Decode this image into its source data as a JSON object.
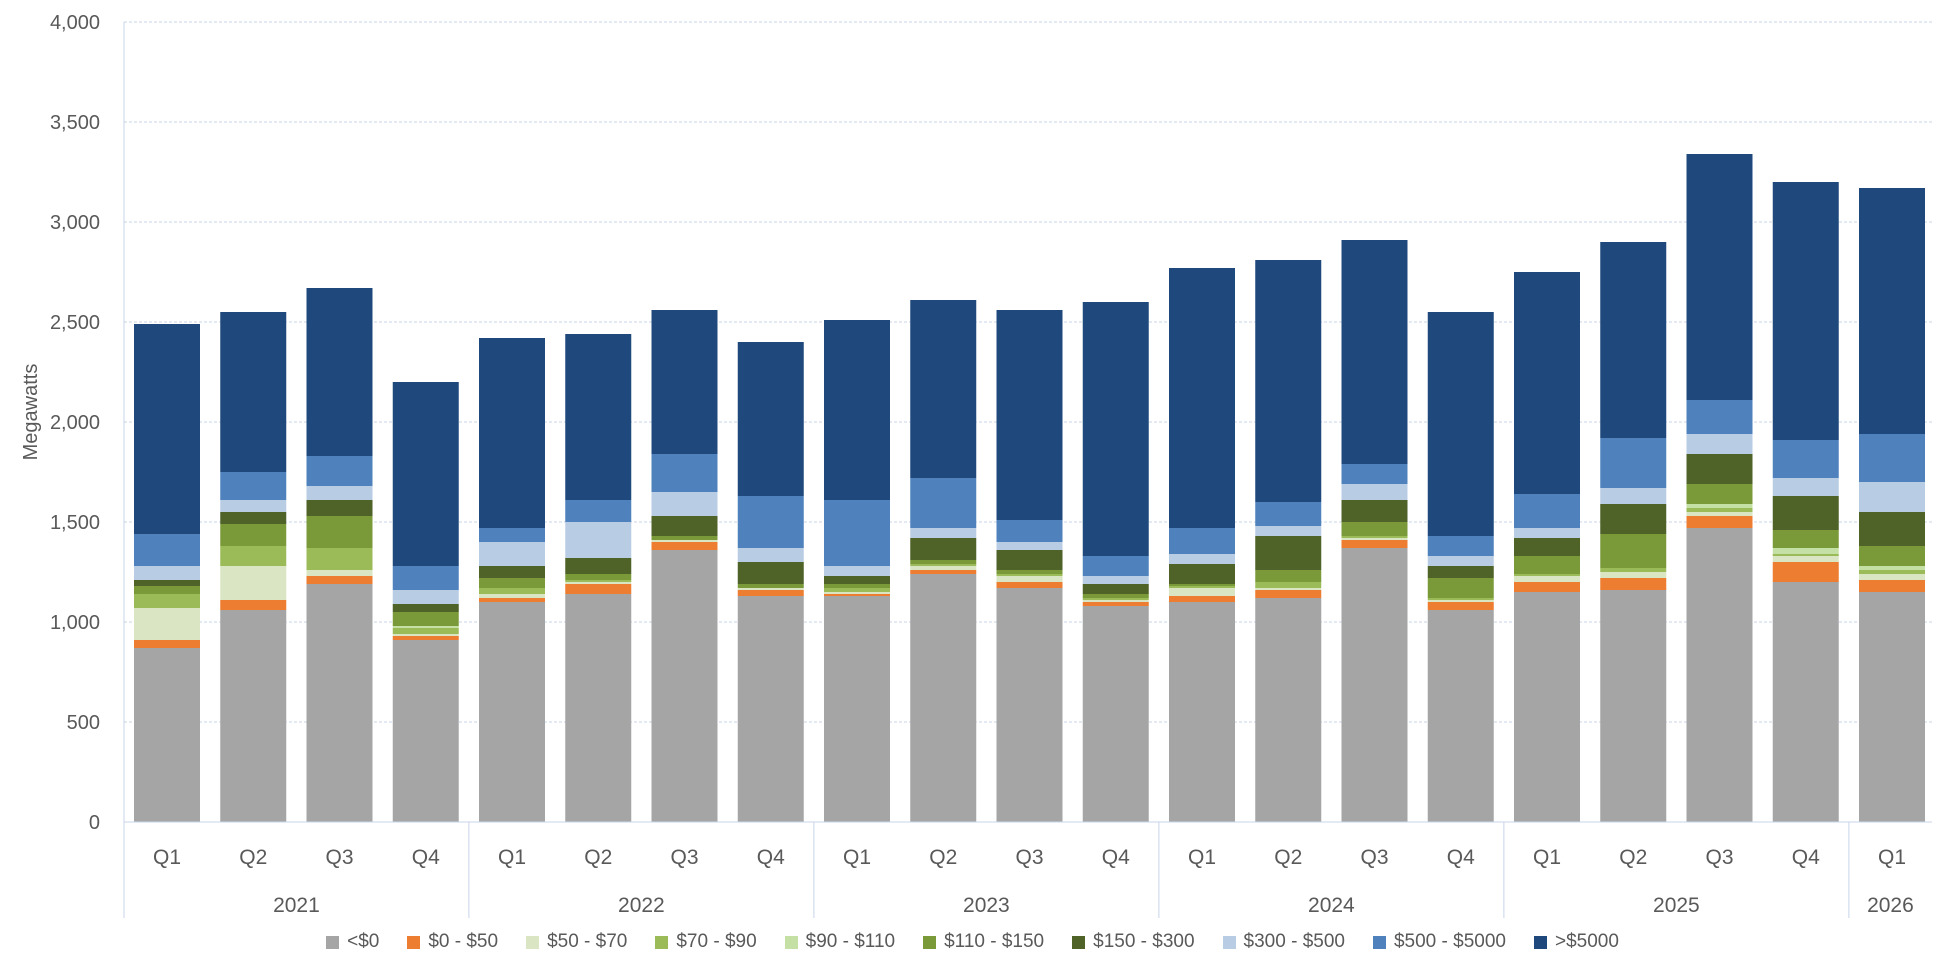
{
  "chart_data": {
    "type": "bar",
    "stacked": true,
    "ylabel": "Megawatts",
    "ylim": [
      0,
      4000
    ],
    "yticks": [
      0,
      500,
      1000,
      1500,
      2000,
      2500,
      3000,
      3500,
      4000
    ],
    "ytick_labels": [
      "0",
      "500",
      "1,000",
      "1,500",
      "2,000",
      "2,500",
      "3,000",
      "3,500",
      "4,000"
    ],
    "grid": true,
    "legend_position": "bottom",
    "categories": [
      "Q1",
      "Q2",
      "Q3",
      "Q4",
      "Q1",
      "Q2",
      "Q3",
      "Q4",
      "Q1",
      "Q2",
      "Q3",
      "Q4",
      "Q1",
      "Q2",
      "Q3",
      "Q4",
      "Q1",
      "Q2",
      "Q3",
      "Q4",
      "Q1"
    ],
    "groups": [
      {
        "label": "2021",
        "count": 4
      },
      {
        "label": "2022",
        "count": 4
      },
      {
        "label": "2023",
        "count": 4
      },
      {
        "label": "2024",
        "count": 4
      },
      {
        "label": "2025",
        "count": 4
      },
      {
        "label": "2026",
        "count": 1
      }
    ],
    "series": [
      {
        "name": "<$0",
        "color": "#a5a5a5",
        "values": [
          870,
          1060,
          1190,
          910,
          1100,
          1140,
          1360,
          1130,
          1130,
          1240,
          1170,
          1080,
          1100,
          1120,
          1370,
          1060,
          1150,
          1160,
          1470,
          1200,
          1150
        ]
      },
      {
        "name": "$0 - $50",
        "color": "#ed7d31",
        "values": [
          40,
          50,
          40,
          20,
          20,
          50,
          40,
          30,
          10,
          20,
          30,
          20,
          30,
          40,
          40,
          40,
          50,
          60,
          60,
          100,
          60
        ]
      },
      {
        "name": "$50 - $70",
        "color": "#d9e5c3",
        "values": [
          160,
          170,
          30,
          10,
          20,
          10,
          10,
          10,
          10,
          20,
          30,
          10,
          40,
          10,
          10,
          10,
          30,
          30,
          20,
          30,
          30
        ]
      },
      {
        "name": "$70 - $90",
        "color": "#9bbb59",
        "values": [
          70,
          100,
          110,
          30,
          30,
          10,
          0,
          0,
          20,
          10,
          10,
          10,
          10,
          30,
          10,
          10,
          10,
          20,
          20,
          10,
          20
        ]
      },
      {
        "name": "$90 - $110",
        "color": "#c5e0a5",
        "values": [
          0,
          0,
          0,
          10,
          0,
          0,
          0,
          0,
          0,
          0,
          0,
          0,
          0,
          0,
          0,
          0,
          0,
          0,
          20,
          30,
          20
        ]
      },
      {
        "name": "$110 - $150",
        "color": "#7a9a3a",
        "values": [
          40,
          110,
          160,
          70,
          50,
          30,
          20,
          20,
          20,
          20,
          20,
          20,
          10,
          60,
          70,
          100,
          90,
          170,
          100,
          90,
          100
        ]
      },
      {
        "name": "$150 - $300",
        "color": "#4f6228",
        "values": [
          30,
          60,
          80,
          40,
          60,
          80,
          100,
          110,
          40,
          110,
          100,
          50,
          100,
          170,
          110,
          60,
          90,
          150,
          150,
          170,
          170
        ]
      },
      {
        "name": "$300 - $500",
        "color": "#b8cce4",
        "values": [
          70,
          60,
          70,
          70,
          120,
          180,
          120,
          70,
          50,
          50,
          40,
          40,
          50,
          50,
          80,
          50,
          50,
          80,
          100,
          90,
          150
        ]
      },
      {
        "name": "$500 - $5000",
        "color": "#4f81bd",
        "values": [
          160,
          140,
          150,
          120,
          70,
          110,
          190,
          260,
          330,
          250,
          110,
          100,
          130,
          120,
          100,
          100,
          170,
          250,
          170,
          190,
          240
        ]
      },
      {
        "name": ">$5000",
        "color": "#1f497d",
        "values": [
          1050,
          800,
          840,
          920,
          950,
          830,
          720,
          770,
          900,
          890,
          1050,
          1270,
          1300,
          1210,
          1120,
          1120,
          1110,
          980,
          1230,
          1290,
          1230
        ]
      }
    ]
  }
}
